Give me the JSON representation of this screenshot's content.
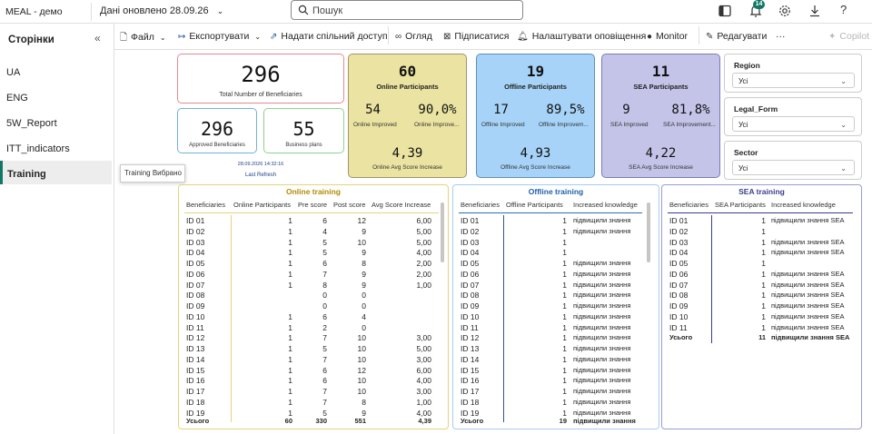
{
  "app": {
    "title": "MEAL - демо",
    "updated": "Дані оновлено 28.09.26",
    "search_placeholder": "Пошук",
    "notifications": "14"
  },
  "sidebar": {
    "heading": "Сторінки",
    "collapse": "«",
    "items": [
      {
        "label": "UA"
      },
      {
        "label": "ENG"
      },
      {
        "label": "5W_Report"
      },
      {
        "label": "ITT_indicators"
      },
      {
        "label": "Training"
      }
    ],
    "tooltip": "Training Вибрано"
  },
  "toolbar": {
    "file": "Файл",
    "export": "Експортувати",
    "share": "Надати спільний доступ",
    "view": "Огляд",
    "subscribe": "Підписатися",
    "alerts": "Налаштувати оповіщення",
    "monitor": "Monitor",
    "edit": "Редагувати",
    "more": "···",
    "copilot": "Copilot"
  },
  "kpi": {
    "total": {
      "value": "296",
      "label": "Total Number of Beneficiaries"
    },
    "approved": {
      "value": "296",
      "label": "Approved Beneficiaries"
    },
    "plans": {
      "value": "55",
      "label": "Business plans"
    },
    "refresh_time": "28.09.2026 14:32:16",
    "refresh_label": "Last Refresh",
    "online": {
      "value": "60",
      "title": "Online Participants",
      "improved": "54",
      "improved_label": "Online Improved",
      "pct": "90,0%",
      "pct_label": "Online Improve...",
      "avg": "4,39",
      "avg_label": "Online Avg Score Increase",
      "color": "#ebe3a1"
    },
    "offline": {
      "value": "19",
      "title": "Offline Participants",
      "improved": "17",
      "improved_label": "Offline Improved",
      "pct": "89,5%",
      "pct_label": "Offline Improvem...",
      "avg": "4,93",
      "avg_label": "Offline Avg Score Increase",
      "color": "#a6d3f7"
    },
    "sea": {
      "value": "11",
      "title": "SEA Participants",
      "improved": "9",
      "improved_label": "SEA Improved",
      "pct": "81,8%",
      "pct_label": "SEA Improvement...",
      "avg": "4,22",
      "avg_label": "SEA Avg Score Increase",
      "color": "#c3c4e8"
    }
  },
  "slicers": [
    {
      "title": "Region",
      "value": "Усі"
    },
    {
      "title": "Legal_Form",
      "value": "Усі"
    },
    {
      "title": "Sector",
      "value": "Усі"
    }
  ],
  "online_table": {
    "title": "Online training",
    "title_color": "#b38a00",
    "border": "#e8d27a",
    "headers": [
      "Beneficiaries",
      "Online Participants",
      "Pre score",
      "Post score",
      "Avg Score Increase"
    ],
    "rows": [
      [
        "ID 01",
        "1",
        "6",
        "12",
        "6,00"
      ],
      [
        "ID 02",
        "1",
        "4",
        "9",
        "5,00"
      ],
      [
        "ID 03",
        "1",
        "5",
        "10",
        "5,00"
      ],
      [
        "ID 04",
        "1",
        "5",
        "9",
        "4,00"
      ],
      [
        "ID 05",
        "1",
        "6",
        "8",
        "2,00"
      ],
      [
        "ID 06",
        "1",
        "7",
        "9",
        "2,00"
      ],
      [
        "ID 07",
        "1",
        "8",
        "9",
        "1,00"
      ],
      [
        "ID 08",
        "",
        "0",
        "0",
        ""
      ],
      [
        "ID 09",
        "",
        "0",
        "0",
        ""
      ],
      [
        "ID 10",
        "1",
        "6",
        "4",
        ""
      ],
      [
        "ID 11",
        "1",
        "2",
        "0",
        ""
      ],
      [
        "ID 12",
        "1",
        "7",
        "10",
        "3,00"
      ],
      [
        "ID 13",
        "1",
        "5",
        "10",
        "5,00"
      ],
      [
        "ID 14",
        "1",
        "7",
        "10",
        "3,00"
      ],
      [
        "ID 15",
        "1",
        "6",
        "12",
        "6,00"
      ],
      [
        "ID 16",
        "1",
        "6",
        "10",
        "4,00"
      ],
      [
        "ID 17",
        "1",
        "7",
        "10",
        "3,00"
      ],
      [
        "ID 18",
        "1",
        "7",
        "8",
        "1,00"
      ],
      [
        "ID 19",
        "1",
        "5",
        "9",
        "4,00"
      ]
    ],
    "total": [
      "Усього",
      "60",
      "330",
      "551",
      "4,39"
    ]
  },
  "offline_table": {
    "title": "Offline training",
    "title_color": "#1f5fa8",
    "border": "#a6cdf0",
    "headers": [
      "Beneficiaries",
      "Offline Participants",
      "Increased knowledge"
    ],
    "rows": [
      [
        "ID 01",
        "1",
        "підвищили знання"
      ],
      [
        "ID 02",
        "1",
        "підвищили знання"
      ],
      [
        "ID 03",
        "1",
        ""
      ],
      [
        "ID 04",
        "1",
        ""
      ],
      [
        "ID 05",
        "1",
        "підвищили знання"
      ],
      [
        "ID 06",
        "1",
        "підвищили знання"
      ],
      [
        "ID 07",
        "1",
        "підвищили знання"
      ],
      [
        "ID 08",
        "1",
        "підвищили знання"
      ],
      [
        "ID 09",
        "1",
        "підвищили знання"
      ],
      [
        "ID 10",
        "1",
        "підвищили знання"
      ],
      [
        "ID 11",
        "1",
        "підвищили знання"
      ],
      [
        "ID 12",
        "1",
        "підвищили знання"
      ],
      [
        "ID 13",
        "1",
        "підвищили знання"
      ],
      [
        "ID 14",
        "1",
        "підвищили знання"
      ],
      [
        "ID 15",
        "1",
        "підвищили знання"
      ],
      [
        "ID 16",
        "1",
        "підвищили знання"
      ],
      [
        "ID 17",
        "1",
        "підвищили знання"
      ],
      [
        "ID 18",
        "1",
        "підвищили знання"
      ],
      [
        "ID 19",
        "1",
        "підвищили знання"
      ]
    ],
    "total": [
      "Усього",
      "19",
      "підвищили знання"
    ]
  },
  "sea_table": {
    "title": "SEA training",
    "title_color": "#3a3d8f",
    "border": "#b6b8e6",
    "headers": [
      "Beneficiaries",
      "SEA Participants",
      "Increased knowledge"
    ],
    "rows": [
      [
        "ID 01",
        "1",
        "підвищили знання SEA"
      ],
      [
        "ID 02",
        "1",
        ""
      ],
      [
        "ID 03",
        "1",
        "підвищили знання SEA"
      ],
      [
        "ID 04",
        "1",
        "підвищили знання SEA"
      ],
      [
        "ID 05",
        "1",
        ""
      ],
      [
        "ID 06",
        "1",
        "підвищили знання SEA"
      ],
      [
        "ID 07",
        "1",
        "підвищили знання SEA"
      ],
      [
        "ID 08",
        "1",
        "підвищили знання SEA"
      ],
      [
        "ID 09",
        "1",
        "підвищили знання SEA"
      ],
      [
        "ID 10",
        "1",
        "підвищили знання SEA"
      ],
      [
        "ID 11",
        "1",
        "підвищили знання SEA"
      ]
    ],
    "total": [
      "Усього",
      "11",
      "підвищили знання SEA"
    ]
  }
}
